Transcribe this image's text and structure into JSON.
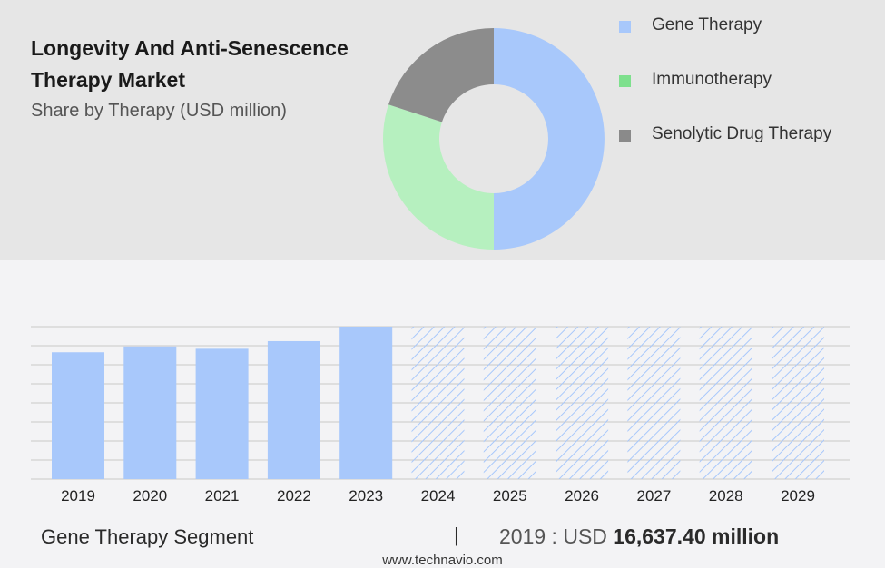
{
  "header": {
    "title": "Longevity And Anti-Senescence Therapy Market",
    "subtitle": "Share by Therapy (USD million)"
  },
  "legend": [
    {
      "label": "Gene Therapy",
      "color": "#a8c8fb"
    },
    {
      "label": "Immunotherapy",
      "color": "#7ee08d"
    },
    {
      "label": "Senolytic Drug Therapy",
      "color": "#8a8a8a"
    }
  ],
  "chart_data": [
    {
      "type": "pie",
      "title": "Share by Therapy (USD million)",
      "donut": true,
      "slices": [
        {
          "label": "Gene Therapy",
          "value": 50,
          "color": "#a8c8fb"
        },
        {
          "label": "Immunotherapy",
          "value": 30,
          "color": "#b6f0bf"
        },
        {
          "label": "Senolytic Drug Therapy",
          "value": 20,
          "color": "#8c8c8c"
        }
      ]
    },
    {
      "type": "bar",
      "categories": [
        "2019",
        "2020",
        "2021",
        "2022",
        "2023",
        "2024",
        "2025",
        "2026",
        "2027",
        "2028",
        "2029"
      ],
      "values": [
        16637.4,
        17400,
        17100,
        18100,
        20000,
        20000,
        20000,
        20000,
        20000,
        20000,
        20000
      ],
      "forecast_from": "2024",
      "ylim": [
        0,
        20000
      ],
      "grid": true,
      "color": "#a8c8fb"
    }
  ],
  "footer": {
    "segment": "Gene Therapy Segment",
    "separator": "|",
    "value_prefix": "2019 : USD",
    "value_bold": "16,637.40 million",
    "watermark": "www.technavio.com"
  }
}
